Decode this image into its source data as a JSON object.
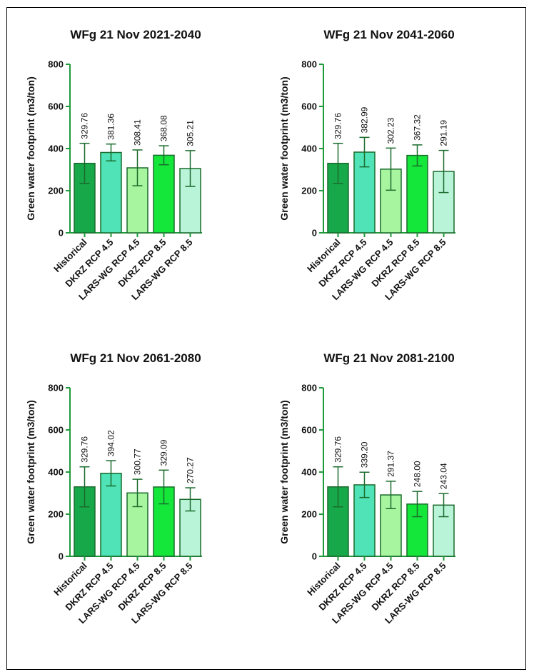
{
  "chart_data": [
    {
      "type": "bar",
      "title": "WFg 21 Nov 2021-2040",
      "ylabel": "Green water footprint (m3/ton)",
      "xlabel": "",
      "ylim": [
        0,
        800
      ],
      "yticks": [
        "0",
        "200",
        "400",
        "600",
        "800"
      ],
      "grid": false,
      "categories": [
        "Historical",
        "DKRZ RCP 4.5",
        "LARS-WG RCP 4.5",
        "DKRZ RCP 8.5",
        "LARS-WG RCP 8.5"
      ],
      "values": [
        329.76,
        381.36,
        308.41,
        368.08,
        305.21
      ],
      "value_labels": [
        "329.76",
        "381.36",
        "308.41",
        "368.08",
        "305.21"
      ],
      "error": [
        95,
        40,
        85,
        45,
        85
      ]
    },
    {
      "type": "bar",
      "title": "WFg 21 Nov 2041-2060",
      "ylabel": "Green water footprint (m3/ton)",
      "xlabel": "",
      "ylim": [
        0,
        800
      ],
      "yticks": [
        "0",
        "200",
        "400",
        "600",
        "800"
      ],
      "grid": false,
      "categories": [
        "Historical",
        "DKRZ RCP 4.5",
        "LARS-WG RCP 4.5",
        "DKRZ RCP 8.5",
        "LARS-WG RCP 8.5"
      ],
      "values": [
        329.76,
        382.99,
        302.23,
        367.32,
        291.19
      ],
      "value_labels": [
        "329.76",
        "382.99",
        "302.23",
        "367.32",
        "291.19"
      ],
      "error": [
        95,
        70,
        100,
        50,
        100
      ]
    },
    {
      "type": "bar",
      "title": "WFg 21 Nov 2061-2080",
      "ylabel": "Green water footprint (m3/ton)",
      "xlabel": "",
      "ylim": [
        0,
        800
      ],
      "yticks": [
        "0",
        "200",
        "400",
        "600",
        "800"
      ],
      "grid": false,
      "categories": [
        "Historical",
        "DKRZ RCP 4.5",
        "LARS-WG RCP 4.5",
        "DKRZ RCP 8.5",
        "LARS-WG RCP 8.5"
      ],
      "values": [
        329.76,
        394.02,
        300.77,
        329.09,
        270.27
      ],
      "value_labels": [
        "329.76",
        "394.02",
        "300.77",
        "329.09",
        "270.27"
      ],
      "error": [
        95,
        60,
        65,
        80,
        55
      ]
    },
    {
      "type": "bar",
      "title": "WFg 21 Nov 2081-2100",
      "ylabel": "Green water footprint (m3/ton)",
      "xlabel": "",
      "ylim": [
        0,
        800
      ],
      "yticks": [
        "0",
        "200",
        "400",
        "600",
        "800"
      ],
      "grid": false,
      "categories": [
        "Historical",
        "DKRZ RCP 4.5",
        "LARS-WG RCP 4.5",
        "DKRZ RCP 8.5",
        "LARS-WG RCP 8.5"
      ],
      "values": [
        329.76,
        339.2,
        291.37,
        248.0,
        243.04
      ],
      "value_labels": [
        "329.76",
        "339.20",
        "291.37",
        "248.00",
        "243.04"
      ],
      "error": [
        95,
        60,
        65,
        60,
        55
      ]
    }
  ],
  "colors": {
    "bar_fills": [
      "#17a84a",
      "#4fe3b7",
      "#a8f5a0",
      "#14e63a",
      "#b9f3d8"
    ],
    "bar_stroke": "#1a6b2c",
    "axis": "#1f9a3a",
    "error_bar": "#1a6b2c"
  }
}
